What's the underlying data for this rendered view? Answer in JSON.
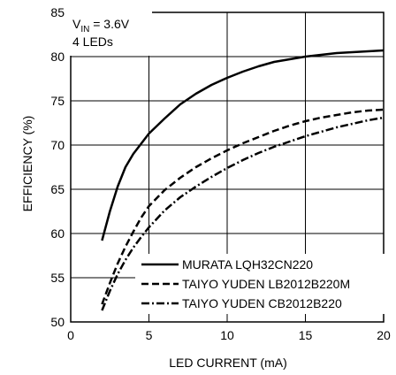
{
  "chart_data": {
    "type": "line",
    "title": "",
    "xlabel": "LED CURRENT (mA)",
    "ylabel": "EFFICIENCY (%)",
    "xlim": [
      0,
      20
    ],
    "ylim": [
      50,
      85
    ],
    "xticks": [
      0,
      5,
      10,
      15,
      20
    ],
    "yticks": [
      50,
      55,
      60,
      65,
      70,
      75,
      80,
      85
    ],
    "grid": true,
    "legend_placement": "bottom-right",
    "annotation": {
      "prefix": "V",
      "subscript": "IN",
      "suffix": " = 3.6V",
      "line2": "4 LEDs"
    },
    "series": [
      {
        "name": "MURATA LQH32CN220",
        "dash": "solid",
        "x": [
          2,
          2.5,
          3,
          3.5,
          4,
          5,
          6,
          7,
          8,
          9,
          10,
          11,
          12,
          13,
          14,
          15,
          16,
          17,
          18,
          19,
          20
        ],
        "y": [
          59.2,
          62.5,
          65.3,
          67.5,
          69.0,
          71.3,
          73.0,
          74.6,
          75.8,
          76.8,
          77.6,
          78.3,
          78.9,
          79.4,
          79.7,
          80.0,
          80.2,
          80.4,
          80.5,
          80.6,
          80.7
        ]
      },
      {
        "name": "TAIYO YUDEN LB2012B220M",
        "dash": "dashed",
        "x": [
          2,
          2.5,
          3,
          3.5,
          4,
          4.5,
          5,
          6,
          7,
          8,
          9,
          10,
          11,
          12,
          13,
          14,
          15,
          16,
          17,
          18,
          19,
          20
        ],
        "y": [
          52.0,
          54.4,
          56.6,
          58.5,
          60.2,
          61.8,
          63.1,
          64.9,
          66.3,
          67.5,
          68.5,
          69.4,
          70.2,
          70.9,
          71.6,
          72.2,
          72.7,
          73.1,
          73.4,
          73.7,
          73.9,
          74.0
        ]
      },
      {
        "name": "TAIYO YUDEN CB2012B220",
        "dash": "dashdot",
        "x": [
          2,
          2.5,
          3,
          3.5,
          4,
          4.5,
          5,
          6,
          7,
          8,
          9,
          10,
          11,
          12,
          13,
          14,
          15,
          16,
          17,
          18,
          19,
          20
        ],
        "y": [
          51.3,
          53.5,
          55.4,
          57.0,
          58.4,
          59.6,
          60.7,
          62.6,
          64.1,
          65.3,
          66.4,
          67.4,
          68.3,
          69.1,
          69.8,
          70.4,
          71.0,
          71.5,
          72.0,
          72.4,
          72.8,
          73.1
        ]
      }
    ]
  }
}
